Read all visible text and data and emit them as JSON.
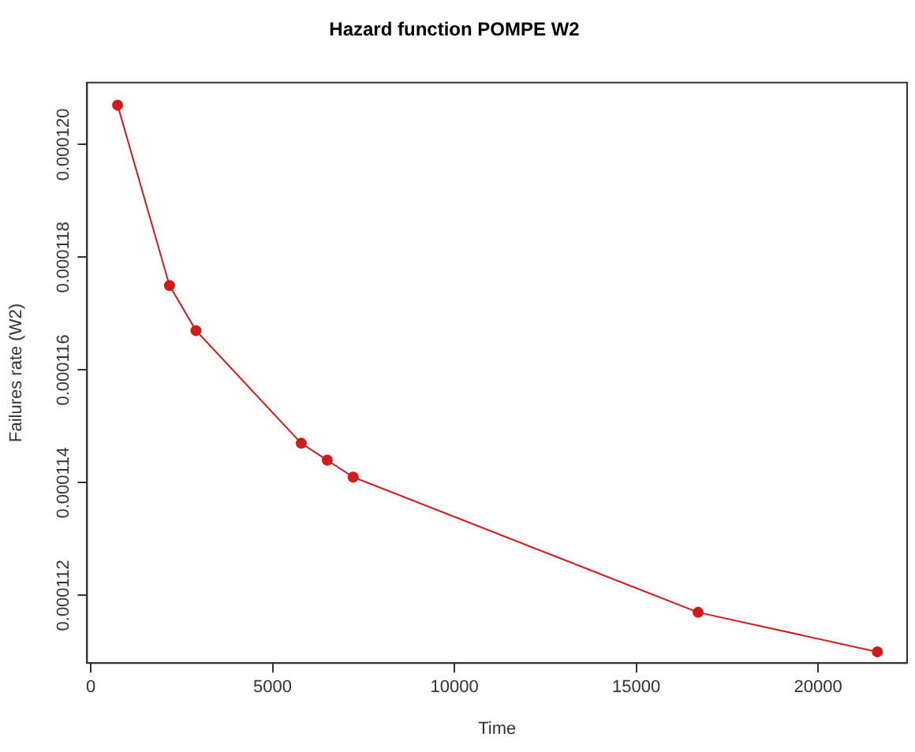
{
  "chart_data": {
    "type": "line",
    "title": "Hazard function POMPE W2",
    "xlabel": "Time",
    "ylabel": "Failures rate (W2)",
    "x": [
      740,
      2167,
      2895,
      5790,
      6506,
      7217,
      16703,
      21633
    ],
    "series": [
      {
        "color": "#d01c1c",
        "values": [
          0.0001207,
          0.0001175,
          0.0001167,
          0.0001147,
          0.0001144,
          0.0001141,
          0.0001117,
          0.000111
        ]
      }
    ],
    "xlim": [
      -100,
      22450
    ],
    "xticks": [
      0,
      5000,
      10000,
      15000,
      20000
    ],
    "ylim": [
      0.0001108,
      0.0001211
    ],
    "yticks": [
      {
        "value": 0.000112,
        "label": "0.000112"
      },
      {
        "value": 0.000114,
        "label": "0.000114"
      },
      {
        "value": 0.000116,
        "label": "0.000116"
      },
      {
        "value": 0.000118,
        "label": "0.000118"
      },
      {
        "value": 0.00012,
        "label": "0.000120"
      }
    ],
    "grid": false,
    "legend": false,
    "marker": "circle",
    "line_style": "solid"
  }
}
